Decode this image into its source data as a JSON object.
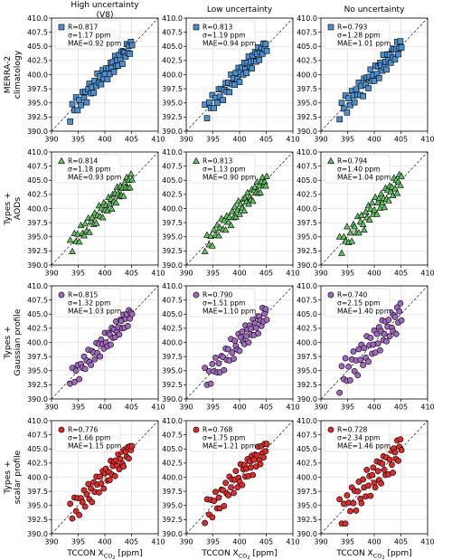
{
  "columns": [
    {
      "lines": [
        "High uncertainty",
        "(V8)"
      ]
    },
    {
      "lines": [
        "Low uncertainty"
      ]
    },
    {
      "lines": [
        "No uncertainty"
      ]
    }
  ],
  "rows": [
    {
      "lines": [
        "MERRA-2",
        "climatology"
      ],
      "color": "#4a90d0",
      "marker": "square"
    },
    {
      "lines": [
        "Types +",
        "AODs"
      ],
      "color": "#5cc45c",
      "marker": "triangle"
    },
    {
      "lines": [
        "Types +",
        "Gaussian profile"
      ],
      "color": "#a066c0",
      "marker": "circle"
    },
    {
      "lines": [
        "Types +",
        "scalar profile"
      ],
      "color": "#e02a2a",
      "marker": "circle"
    }
  ],
  "xlabel": "TCCON X",
  "xlabel_sub": "CO",
  "xlabel_sub2": "2",
  "xlabel_unit": "[ppm]",
  "chart_data": {
    "type": "scatter",
    "xlim": [
      390,
      410
    ],
    "ylim": [
      390,
      410
    ],
    "xticks": [
      "390",
      "395",
      "400",
      "405",
      "410"
    ],
    "yticks": [
      "390.0",
      "392.5",
      "395.0",
      "397.5",
      "400.0",
      "402.5",
      "405.0",
      "407.5",
      "410.0"
    ],
    "one_to_one_line": true,
    "grid": true,
    "x_seed": [
      393.5,
      393.9,
      394.3,
      394.6,
      394.9,
      395.2,
      395.5,
      395.8,
      396.1,
      396.3,
      396.6,
      396.9,
      397.1,
      397.4,
      397.6,
      397.9,
      398.1,
      398.4,
      398.6,
      398.9,
      399.1,
      399.3,
      399.6,
      399.8,
      400.0,
      400.2,
      400.5,
      400.7,
      400.9,
      401.1,
      401.3,
      401.5,
      401.7,
      401.9,
      402.1,
      402.3,
      402.5,
      402.7,
      402.9,
      403.1,
      403.3,
      403.5,
      403.7,
      403.9,
      404.1,
      404.3,
      404.5,
      404.7,
      404.9,
      405.1
    ],
    "panels": [
      {
        "row": 0,
        "col": 0,
        "stats": [
          "R=0.817",
          "σ=1.17 ppm",
          "MAE=0.92 ppm"
        ],
        "y_offsets": [
          -1.8,
          0.9,
          -0.6,
          1.4,
          -1.2,
          0.3,
          -0.9,
          1.1,
          -0.2,
          0.7,
          -1.5,
          0.5,
          1.3,
          -0.7,
          0.2,
          -1.1,
          0.8,
          -0.4,
          1.6,
          -0.3,
          0.6,
          -1.0,
          1.2,
          -0.5,
          0.1,
          0.9,
          -1.3,
          0.4,
          -0.8,
          1.0,
          -0.1,
          0.7,
          -1.2,
          1.4,
          -0.6,
          0.3,
          -0.9,
          0.8,
          -0.3,
          1.1,
          -1.4,
          0.5,
          0.2,
          -0.7,
          1.3,
          -0.4,
          0.6,
          -1.0,
          0.9,
          0.1
        ]
      },
      {
        "row": 0,
        "col": 1,
        "stats": [
          "R=0.813",
          "σ=1.19 ppm",
          "MAE=0.94 ppm"
        ],
        "y_offsets": [
          1.2,
          -1.6,
          0.8,
          -0.5,
          1.5,
          -1.1,
          0.4,
          -0.8,
          1.3,
          -0.2,
          0.9,
          -1.4,
          0.2,
          1.1,
          -0.6,
          0.7,
          -1.2,
          1.6,
          -0.3,
          0.5,
          -0.9,
          1.0,
          -0.4,
          1.4,
          -1.3,
          0.3,
          0.8,
          -0.7,
          1.2,
          -0.1,
          -1.0,
          0.6,
          1.5,
          -0.5,
          0.2,
          -1.2,
          0.9,
          -0.3,
          1.1,
          -0.8,
          0.4,
          1.3,
          -1.1,
          0.1,
          0.7,
          -0.6,
          1.0,
          -0.2,
          0.5,
          -0.9
        ]
      },
      {
        "row": 0,
        "col": 2,
        "stats": [
          "R=0.793",
          "σ=1.28 ppm",
          "MAE=1.01 ppm"
        ],
        "y_offsets": [
          -1.4,
          1.1,
          -0.3,
          1.7,
          -1.6,
          0.6,
          -0.9,
          1.3,
          0.2,
          -1.2,
          0.8,
          -0.5,
          1.5,
          -1.0,
          0.4,
          -1.7,
          1.2,
          -0.2,
          0.9,
          -1.3,
          0.5,
          1.6,
          -0.7,
          0.1,
          -1.1,
          1.4,
          -0.4,
          0.7,
          -1.5,
          1.0,
          0.3,
          -0.8,
          1.8,
          -0.6,
          0.2,
          -1.4,
          1.1,
          -0.1,
          0.6,
          -1.0,
          1.3,
          -0.5,
          0.8,
          -1.2,
          0.4,
          1.5,
          -0.9,
          0.0,
          1.0,
          -0.3
        ]
      },
      {
        "row": 1,
        "col": 0,
        "stats": [
          "R=0.814",
          "σ=1.18 ppm",
          "MAE=0.93 ppm"
        ],
        "y_offsets": [
          0.9,
          -1.5,
          1.3,
          -0.4,
          0.6,
          -1.1,
          1.5,
          -0.2,
          -0.9,
          1.0,
          -0.6,
          1.4,
          -1.3,
          0.3,
          0.8,
          -0.7,
          1.1,
          -1.0,
          0.2,
          1.6,
          -0.5,
          0.7,
          -1.2,
          1.2,
          -0.3,
          0.4,
          -0.9,
          1.3,
          -0.1,
          0.6,
          -1.4,
          1.0,
          -0.4,
          0.8,
          -1.1,
          1.5,
          0.2,
          -0.6,
          1.1,
          -0.8,
          0.3,
          -1.3,
          0.9,
          -0.2,
          1.4,
          -0.7,
          0.5,
          -1.0,
          1.2,
          0.0
        ]
      },
      {
        "row": 1,
        "col": 1,
        "stats": [
          "R=0.813",
          "σ=1.13 ppm",
          "MAE=0.90 ppm"
        ],
        "y_offsets": [
          -1.1,
          1.4,
          -0.7,
          0.5,
          -1.5,
          1.0,
          -0.2,
          1.3,
          -0.9,
          0.3,
          1.6,
          -0.6,
          0.8,
          -1.2,
          1.1,
          -0.3,
          0.4,
          -1.4,
          0.9,
          -0.5,
          1.2,
          -0.8,
          0.1,
          1.5,
          -1.0,
          0.6,
          -0.4,
          1.0,
          -1.3,
          0.7,
          -0.1,
          1.3,
          -0.9,
          0.2,
          -0.6,
          1.1,
          -1.2,
          0.5,
          0.9,
          -0.3,
          1.4,
          -0.8,
          0.3,
          -1.1,
          0.7,
          1.2,
          -0.5,
          0.0,
          -0.9,
          0.6
        ]
      },
      {
        "row": 1,
        "col": 2,
        "stats": [
          "R=0.794",
          "σ=1.40 ppm",
          "MAE=1.04 ppm"
        ],
        "y_offsets": [
          1.5,
          -1.8,
          0.7,
          -0.4,
          1.9,
          -1.2,
          0.2,
          -1.6,
          1.1,
          0.5,
          -0.9,
          1.7,
          -1.4,
          0.3,
          1.2,
          -0.7,
          -1.9,
          1.0,
          -0.2,
          1.6,
          -1.1,
          0.6,
          1.4,
          -0.8,
          -0.3,
          1.8,
          -1.5,
          0.4,
          0.9,
          -1.0,
          1.3,
          -0.5,
          0.1,
          -1.7,
          1.5,
          -0.6,
          0.8,
          -1.3,
          1.1,
          -0.1,
          0.5,
          -1.2,
          1.7,
          -0.4,
          0.9,
          -1.6,
          0.2,
          1.3,
          -0.8,
          0.6
        ]
      },
      {
        "row": 2,
        "col": 0,
        "stats": [
          "R=0.815",
          "σ=1.32 ppm",
          "MAE=1.03 ppm"
        ],
        "y_offsets": [
          -0.8,
          1.6,
          -1.3,
          0.4,
          1.1,
          -1.7,
          0.7,
          -0.3,
          1.4,
          -1.0,
          0.2,
          1.8,
          -0.6,
          -1.4,
          0.9,
          0.3,
          -1.1,
          1.5,
          -0.5,
          0.8,
          -1.6,
          1.2,
          0.1,
          -0.9,
          1.7,
          -0.2,
          -1.2,
          1.0,
          0.5,
          -1.5,
          1.3,
          -0.7,
          0.6,
          -1.0,
          1.6,
          -0.4,
          0.2,
          -1.3,
          1.1,
          0.7,
          -0.8,
          1.4,
          -1.1,
          0.3,
          0.9,
          -1.4,
          1.2,
          -0.5,
          0.4,
          -0.1
        ]
      },
      {
        "row": 2,
        "col": 1,
        "stats": [
          "R=0.790",
          "σ=1.51 ppm",
          "MAE=1.10 ppm"
        ],
        "y_offsets": [
          2.0,
          -1.4,
          0.6,
          -1.9,
          1.3,
          -0.3,
          1.8,
          -1.1,
          0.2,
          -1.6,
          1.0,
          0.5,
          -2.0,
          1.5,
          -0.7,
          0.9,
          -1.3,
          2.2,
          -0.4,
          -1.8,
          1.2,
          0.1,
          -0.9,
          1.7,
          -1.5,
          0.7,
          1.4,
          -0.6,
          -1.2,
          1.9,
          -0.2,
          0.8,
          -1.7,
          1.1,
          0.3,
          -1.0,
          1.6,
          -1.4,
          0.5,
          -0.5,
          1.3,
          -1.9,
          0.9,
          0.0,
          -1.2,
          1.8,
          -0.8,
          0.4,
          1.0,
          -1.1
        ]
      },
      {
        "row": 2,
        "col": 2,
        "stats": [
          "R=0.740",
          "σ=2.15 ppm",
          "MAE=1.40 ppm"
        ],
        "y_offsets": [
          -2.4,
          1.9,
          -0.8,
          2.6,
          -1.7,
          0.5,
          -2.2,
          1.2,
          2.3,
          -1.4,
          0.2,
          -2.7,
          1.7,
          -0.5,
          2.0,
          -1.9,
          0.9,
          -1.1,
          2.5,
          -2.3,
          0.4,
          1.5,
          -1.6,
          -0.2,
          2.1,
          -2.0,
          1.0,
          -0.9,
          1.8,
          -2.5,
          0.7,
          2.4,
          -1.3,
          -0.4,
          1.6,
          -2.1,
          0.3,
          1.3,
          -1.8,
          2.2,
          -0.7,
          -1.5,
          1.1,
          0.6,
          -2.6,
          1.9,
          -1.0,
          0.8,
          2.0,
          -1.2
        ]
      },
      {
        "row": 3,
        "col": 0,
        "stats": [
          "R=0.776",
          "σ=1.66 ppm",
          "MAE=1.15 ppm"
        ],
        "y_offsets": [
          1.8,
          -1.2,
          2.1,
          -0.6,
          1.4,
          -1.9,
          0.8,
          -0.2,
          1.6,
          -1.5,
          0.4,
          1.9,
          -1.0,
          0.6,
          -2.0,
          1.2,
          -0.7,
          1.7,
          0.1,
          -1.6,
          1.0,
          -0.4,
          1.5,
          -1.8,
          0.7,
          1.3,
          -1.1,
          0.2,
          -1.4,
          1.8,
          -0.8,
          0.5,
          1.1,
          -1.7,
          0.9,
          -0.3,
          1.6,
          -1.3,
          0.3,
          1.4,
          -0.9,
          -1.6,
          1.2,
          0.6,
          -0.5,
          1.0,
          -1.2,
          0.8,
          -0.1,
          0.4
        ]
      },
      {
        "row": 3,
        "col": 1,
        "stats": [
          "R=0.768",
          "σ=1.75 ppm",
          "MAE=1.21 ppm"
        ],
        "y_offsets": [
          -1.6,
          2.2,
          -0.9,
          1.4,
          -2.0,
          0.6,
          1.9,
          -1.3,
          0.3,
          -1.8,
          1.2,
          0.8,
          -2.2,
          1.6,
          -0.5,
          -1.1,
          2.0,
          -0.2,
          1.0,
          -1.7,
          0.5,
          1.8,
          -1.4,
          0.1,
          -0.8,
          2.1,
          -1.9,
          0.7,
          1.3,
          -1.0,
          0.2,
          1.7,
          -1.5,
          0.9,
          -0.4,
          1.5,
          -2.1,
          0.4,
          1.1,
          -1.2,
          0.6,
          1.9,
          -0.7,
          -1.6,
          1.4,
          0.0,
          -1.0,
          1.2,
          -0.3,
          0.8
        ]
      },
      {
        "row": 3,
        "col": 2,
        "stats": [
          "R=0.728",
          "σ=2.34 ppm",
          "MAE=1.46 ppm"
        ],
        "y_offsets": [
          2.6,
          -2.1,
          1.0,
          -2.8,
          1.9,
          0.3,
          -1.5,
          2.4,
          -0.7,
          1.3,
          -2.5,
          0.6,
          2.1,
          -1.2,
          -2.2,
          1.7,
          0.1,
          -1.8,
          2.7,
          -0.4,
          1.1,
          -2.6,
          0.8,
          1.9,
          -1.0,
          -2.0,
          2.3,
          0.4,
          -1.4,
          1.5,
          -2.4,
          0.9,
          2.0,
          -0.6,
          -1.7,
          1.2,
          2.5,
          -2.2,
          0.2,
          1.6,
          -1.1,
          -2.7,
          1.4,
          0.5,
          -0.9,
          2.2,
          -1.6,
          0.7,
          1.8,
          -0.3
        ]
      }
    ]
  }
}
